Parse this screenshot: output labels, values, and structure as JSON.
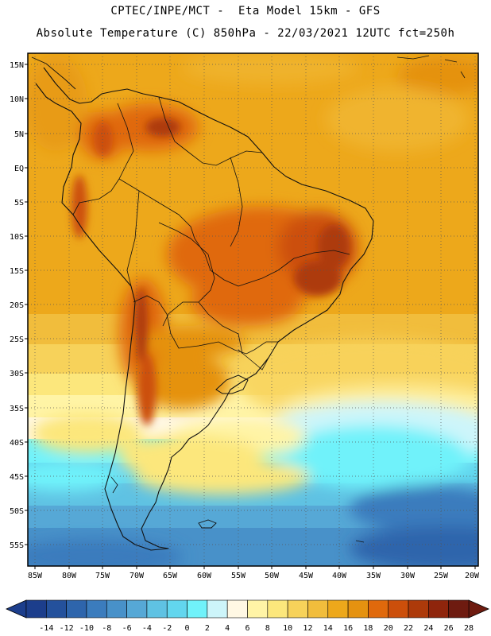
{
  "header": {
    "line1": "CPTEC/INPE/MCT -  Eta Model 15km - GFS",
    "line2": "Absolute Temperature (C) 850hPa - 22/03/2021 12UTC fct=250h"
  },
  "map": {
    "lat_labels": [
      "15N",
      "10N",
      "5N",
      "EQ",
      "5S",
      "10S",
      "15S",
      "20S",
      "25S",
      "30S",
      "35S",
      "40S",
      "45S",
      "50S",
      "55S"
    ],
    "lon_labels": [
      "85W",
      "80W",
      "75W",
      "70W",
      "65W",
      "60W",
      "55W",
      "50W",
      "45W",
      "40W",
      "35W",
      "30W",
      "25W",
      "20W"
    ]
  },
  "colorbar": {
    "labels": [
      "-14",
      "-12",
      "-10",
      "-8",
      "-6",
      "-4",
      "-2",
      "0",
      "2",
      "4",
      "6",
      "8",
      "10",
      "12",
      "14",
      "16",
      "18",
      "20",
      "22",
      "24",
      "26",
      "28"
    ],
    "colors": [
      "#1c3e8c",
      "#24519c",
      "#2e65ac",
      "#3b7cbd",
      "#4891c9",
      "#56a8d6",
      "#5fc2e3",
      "#62d6ee",
      "#70f2fa",
      "#cdf5fa",
      "#fff8e4",
      "#fff4a6",
      "#fce77c",
      "#f7d25a",
      "#f1bd3c",
      "#eda81b",
      "#e59210",
      "#e0690c",
      "#cc4f0b",
      "#ad3a0a",
      "#8f250c",
      "#6e1b10"
    ]
  }
}
